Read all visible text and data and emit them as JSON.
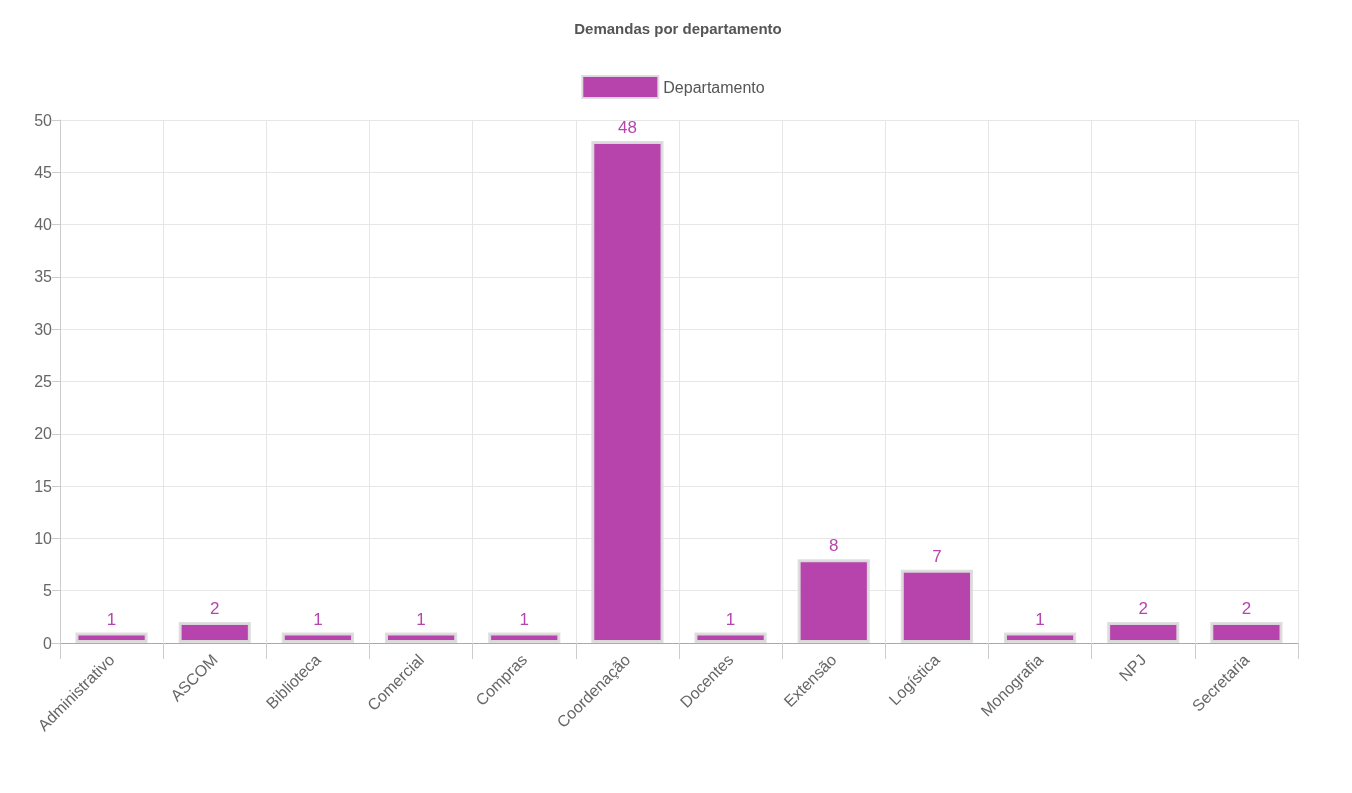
{
  "chart_data": {
    "type": "bar",
    "title": "Demandas por departamento",
    "categories": [
      "Administrativo",
      "ASCOM",
      "Biblioteca",
      "Comercial",
      "Compras",
      "Coordenação",
      "Docentes",
      "Extensão",
      "Logística",
      "Monografia",
      "NPJ",
      "Secretaria"
    ],
    "series": [
      {
        "name": "Departamento",
        "color": "#b23aa8",
        "values": [
          1,
          2,
          1,
          1,
          1,
          48,
          1,
          8,
          7,
          1,
          2,
          2
        ]
      }
    ],
    "ylim": [
      0,
      50
    ],
    "yticks": [
      0,
      5,
      10,
      15,
      20,
      25,
      30,
      35,
      40,
      45,
      50
    ],
    "grid": true,
    "legend": "top",
    "data_labels": true
  }
}
